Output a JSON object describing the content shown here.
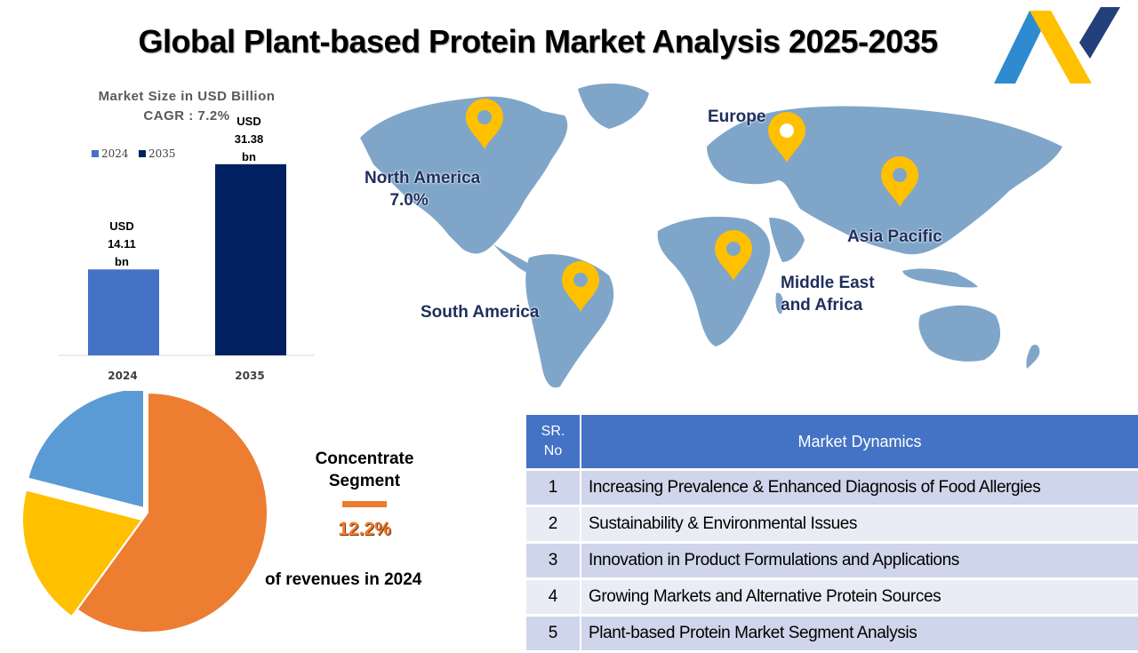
{
  "title": "Global Plant-based Protein Market Analysis 2025-2035",
  "colors": {
    "bar_2024": "#4472C4",
    "bar_2035": "#002060",
    "pie_orange": "#ED7D31",
    "pie_yellow": "#FFC000",
    "pie_blue": "#5B9BD5",
    "map_land": "#7FA6C9",
    "pin": "#FFC000",
    "table_header": "#4472C4"
  },
  "logo": {
    "icon": "company-logo-icon"
  },
  "bar_section": {
    "heading_line1": "Market Size in USD Billion",
    "heading_line2": "CAGR : 7.2%"
  },
  "chart_data": [
    {
      "type": "bar",
      "title": "Market Size in USD Billion",
      "subtitle": "CAGR : 7.2%",
      "categories": [
        "2024",
        "2035"
      ],
      "legend": [
        "2024",
        "2035"
      ],
      "legend_position": "top-left",
      "values": [
        14.11,
        31.38
      ],
      "value_labels": [
        [
          "USD",
          "14.11",
          "bn"
        ],
        [
          "USD",
          "31.38",
          "bn"
        ]
      ],
      "ylim": [
        0,
        35
      ],
      "grid": false
    },
    {
      "type": "pie",
      "slices": [
        {
          "value": 60,
          "color": "#ED7D31"
        },
        {
          "value": 19,
          "color": "#FFC000"
        },
        {
          "value": 21,
          "color": "#5B9BD5"
        }
      ],
      "legend": "none"
    }
  ],
  "map": {
    "icon": "world-map",
    "pin_icon": "location-pin-icon",
    "regions": {
      "north_america": {
        "name": "North America",
        "value": "7.0%"
      },
      "europe": {
        "name": "Europe"
      },
      "asia_pacific": {
        "name": "Asia Pacific"
      },
      "south_america": {
        "name": "South America"
      },
      "mea_line1": "Middle East",
      "mea_line2": "and Africa"
    }
  },
  "segment": {
    "name_line1": "Concentrate",
    "name_line2": "Segment",
    "value": "12.2%",
    "note": "of revenues  in 2024"
  },
  "dynamics": {
    "sr_line1": "SR.",
    "sr_line2": "No",
    "header": "Market Dynamics",
    "rows": [
      {
        "no": "1",
        "text": "Increasing Prevalence & Enhanced Diagnosis of Food Allergies"
      },
      {
        "no": "2",
        "text": "Sustainability & Environmental Issues"
      },
      {
        "no": "3",
        "text": "Innovation in Product Formulations and Applications"
      },
      {
        "no": "4",
        "text": "Growing Markets and Alternative Protein Sources"
      },
      {
        "no": "5",
        "text": "Plant-based Protein Market Segment Analysis"
      }
    ]
  }
}
